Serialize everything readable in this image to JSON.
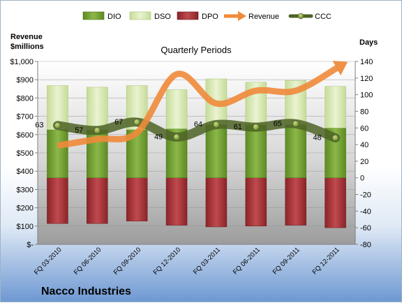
{
  "company": "Nacco Industries",
  "chart_data": {
    "type": "bar",
    "title": "Quarterly Periods",
    "left_axis_label": [
      "Revenue",
      "$millions"
    ],
    "right_axis_label": "Days",
    "left_ticks": [
      "$-",
      "$100",
      "$200",
      "$300",
      "$400",
      "$500",
      "$600",
      "$700",
      "$800",
      "$900",
      "$1,000"
    ],
    "right_ticks": [
      "-80",
      "-60",
      "-40",
      "-20",
      "0",
      "20",
      "40",
      "60",
      "80",
      "100",
      "120",
      "140"
    ],
    "ylim_left": [
      0,
      1000
    ],
    "ylim_right": [
      -80,
      140
    ],
    "categories": [
      "FQ 03-2010",
      "FQ 06-2010",
      "FQ 09-2010",
      "FQ 12-2010",
      "FQ 03-2011",
      "FQ 06-2011",
      "FQ 09-2011",
      "FQ 12-2011"
    ],
    "legend": [
      "DIO",
      "DSO",
      "DPO",
      "Revenue",
      "CCC"
    ],
    "legend_position": "top",
    "series": [
      {
        "name": "DIO",
        "axis": "right",
        "values": [
          58,
          58,
          58,
          59,
          64,
          64,
          64,
          60
        ]
      },
      {
        "name": "DSO",
        "axis": "right",
        "values": [
          53,
          51,
          53,
          47,
          55,
          51,
          53,
          50
        ]
      },
      {
        "name": "DPO",
        "axis": "right",
        "values": [
          -55,
          -55,
          -52,
          -57,
          -59,
          -58,
          -57,
          -60
        ]
      },
      {
        "name": "Revenue",
        "axis": "left",
        "values": [
          540,
          575,
          610,
          930,
          770,
          840,
          840,
          960
        ]
      },
      {
        "name": "CCC",
        "axis": "right",
        "values": [
          63,
          57,
          67,
          49,
          64,
          61,
          65,
          48
        ]
      }
    ],
    "colors": {
      "DIO": "#6f9a2f",
      "DSO": "#d7e8b0",
      "DPO": "#a9393e",
      "Revenue": "#ef8a3a",
      "CCC": "#4e6326"
    },
    "grid": true
  }
}
